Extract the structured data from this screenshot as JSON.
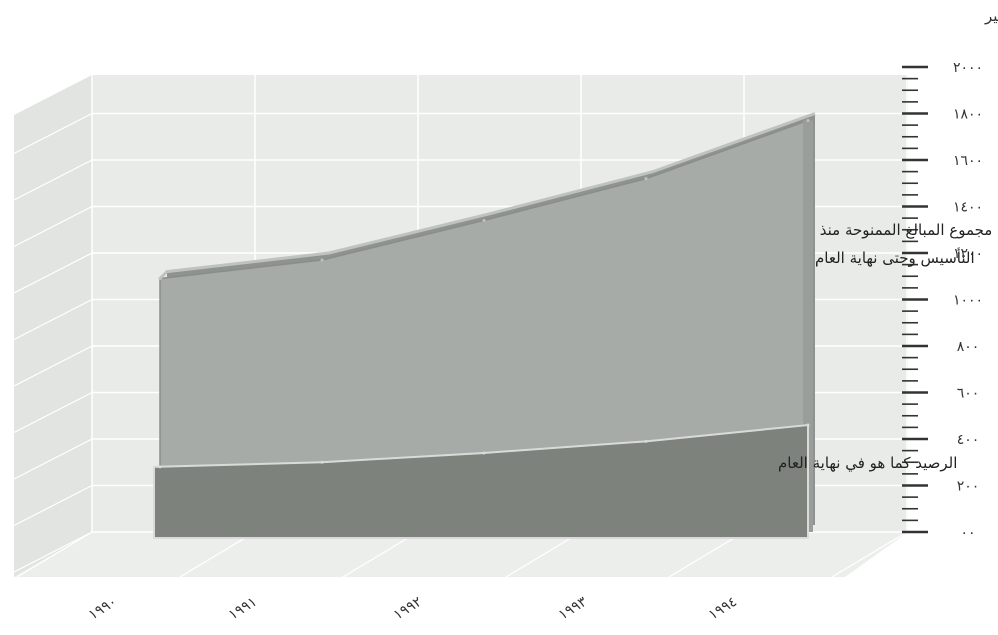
{
  "chart_data": {
    "type": "area",
    "ylabel": "ملايين الدنانير",
    "ylim": [
      0,
      2000
    ],
    "yticks": [
      0,
      200,
      400,
      600,
      800,
      1000,
      1200,
      1400,
      1600,
      1800,
      2000
    ],
    "ytick_labels": [
      "٠٠",
      "٢٠٠",
      "٤٠٠",
      "٦٠٠",
      "٨٠٠",
      "١٠٠٠",
      "١٢٠٠",
      "١٤٠٠",
      "١٦٠٠",
      "١٨٠٠",
      "٢٠٠٠"
    ],
    "categories": [
      "١٩٩٠",
      "١٩٩١",
      "١٩٩٢",
      "١٩٩٣",
      "١٩٩٤"
    ],
    "grid": true,
    "series": [
      {
        "name": "مجموع المبالغ الممنوحة منذ التأسيس وحتى نهاية العام",
        "values": [
          1090,
          1170,
          1340,
          1520,
          1770
        ],
        "color": "#a7aba7"
      },
      {
        "name": "الرصيد كما هو في نهاية العام",
        "values": [
          280,
          300,
          340,
          390,
          460
        ],
        "color": "#7d827d"
      }
    ]
  }
}
